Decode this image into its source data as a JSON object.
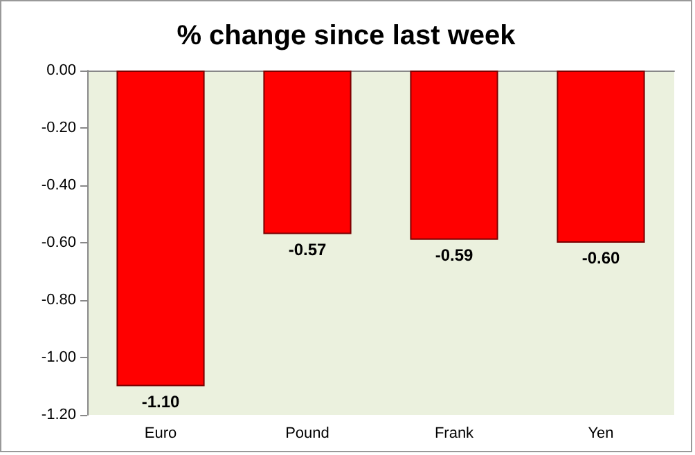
{
  "chart_data": {
    "type": "bar",
    "title": "% change since last week",
    "categories": [
      "Euro",
      "Pound",
      "Frank",
      "Yen"
    ],
    "values": [
      -1.1,
      -0.57,
      -0.59,
      -0.6
    ],
    "value_labels": [
      "-1.10",
      "-0.57",
      "-0.59",
      "-0.60"
    ],
    "color": "#ff0000",
    "ylim": [
      -1.2,
      0
    ],
    "yticks": [
      {
        "value": -1.2,
        "label": "-1.20"
      },
      {
        "value": -1,
        "label": "-1.00"
      },
      {
        "value": -0.8,
        "label": "-0.80"
      },
      {
        "value": -0.6,
        "label": "-0.60"
      },
      {
        "value": -0.4,
        "label": "-0.40"
      },
      {
        "value": -0.2,
        "label": "-0.20"
      },
      {
        "value": 0,
        "label": "0.00"
      }
    ],
    "grid": false
  }
}
